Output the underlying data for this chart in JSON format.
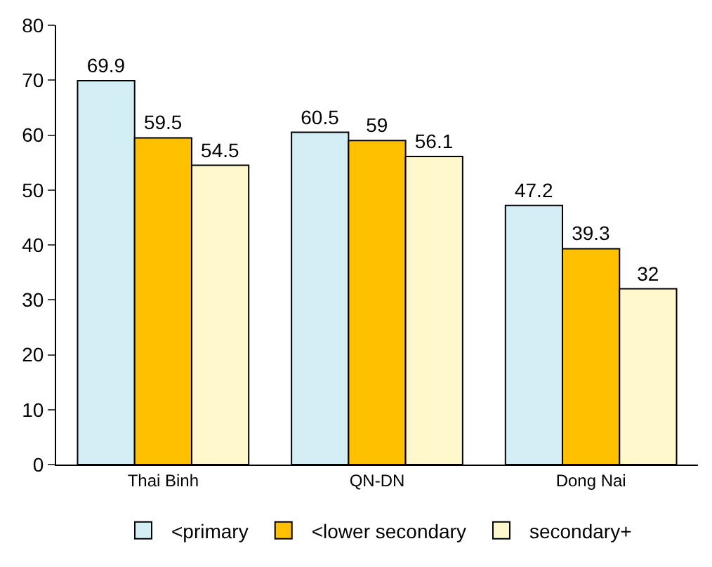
{
  "chart_data": {
    "type": "bar",
    "categories": [
      "Thai Binh",
      "QN-DN",
      "Dong Nai"
    ],
    "series": [
      {
        "name": "<primary",
        "color": "#d4eef6",
        "values": [
          69.9,
          60.5,
          47.2
        ]
      },
      {
        "name": "<lower secondary",
        "color": "#ffc000",
        "values": [
          59.5,
          59,
          39.3
        ]
      },
      {
        "name": "secondary+",
        "color": "#fff8cc",
        "values": [
          54.5,
          56.1,
          32
        ]
      }
    ],
    "ylim": [
      0,
      80
    ],
    "yticks": [
      0,
      10,
      20,
      30,
      40,
      50,
      60,
      70,
      80
    ],
    "legend": "bottom",
    "data_labels": true
  }
}
